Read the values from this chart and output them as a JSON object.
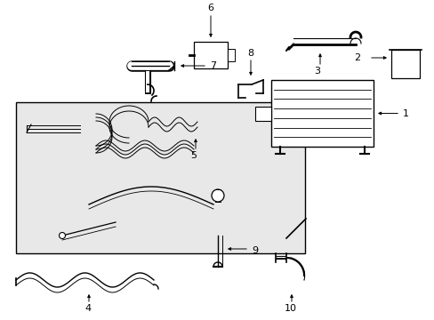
{
  "bg_color": "#ffffff",
  "line_color": "#000000",
  "box_bg": "#e8e8e8",
  "fig_width": 4.89,
  "fig_height": 3.6,
  "dpi": 100
}
